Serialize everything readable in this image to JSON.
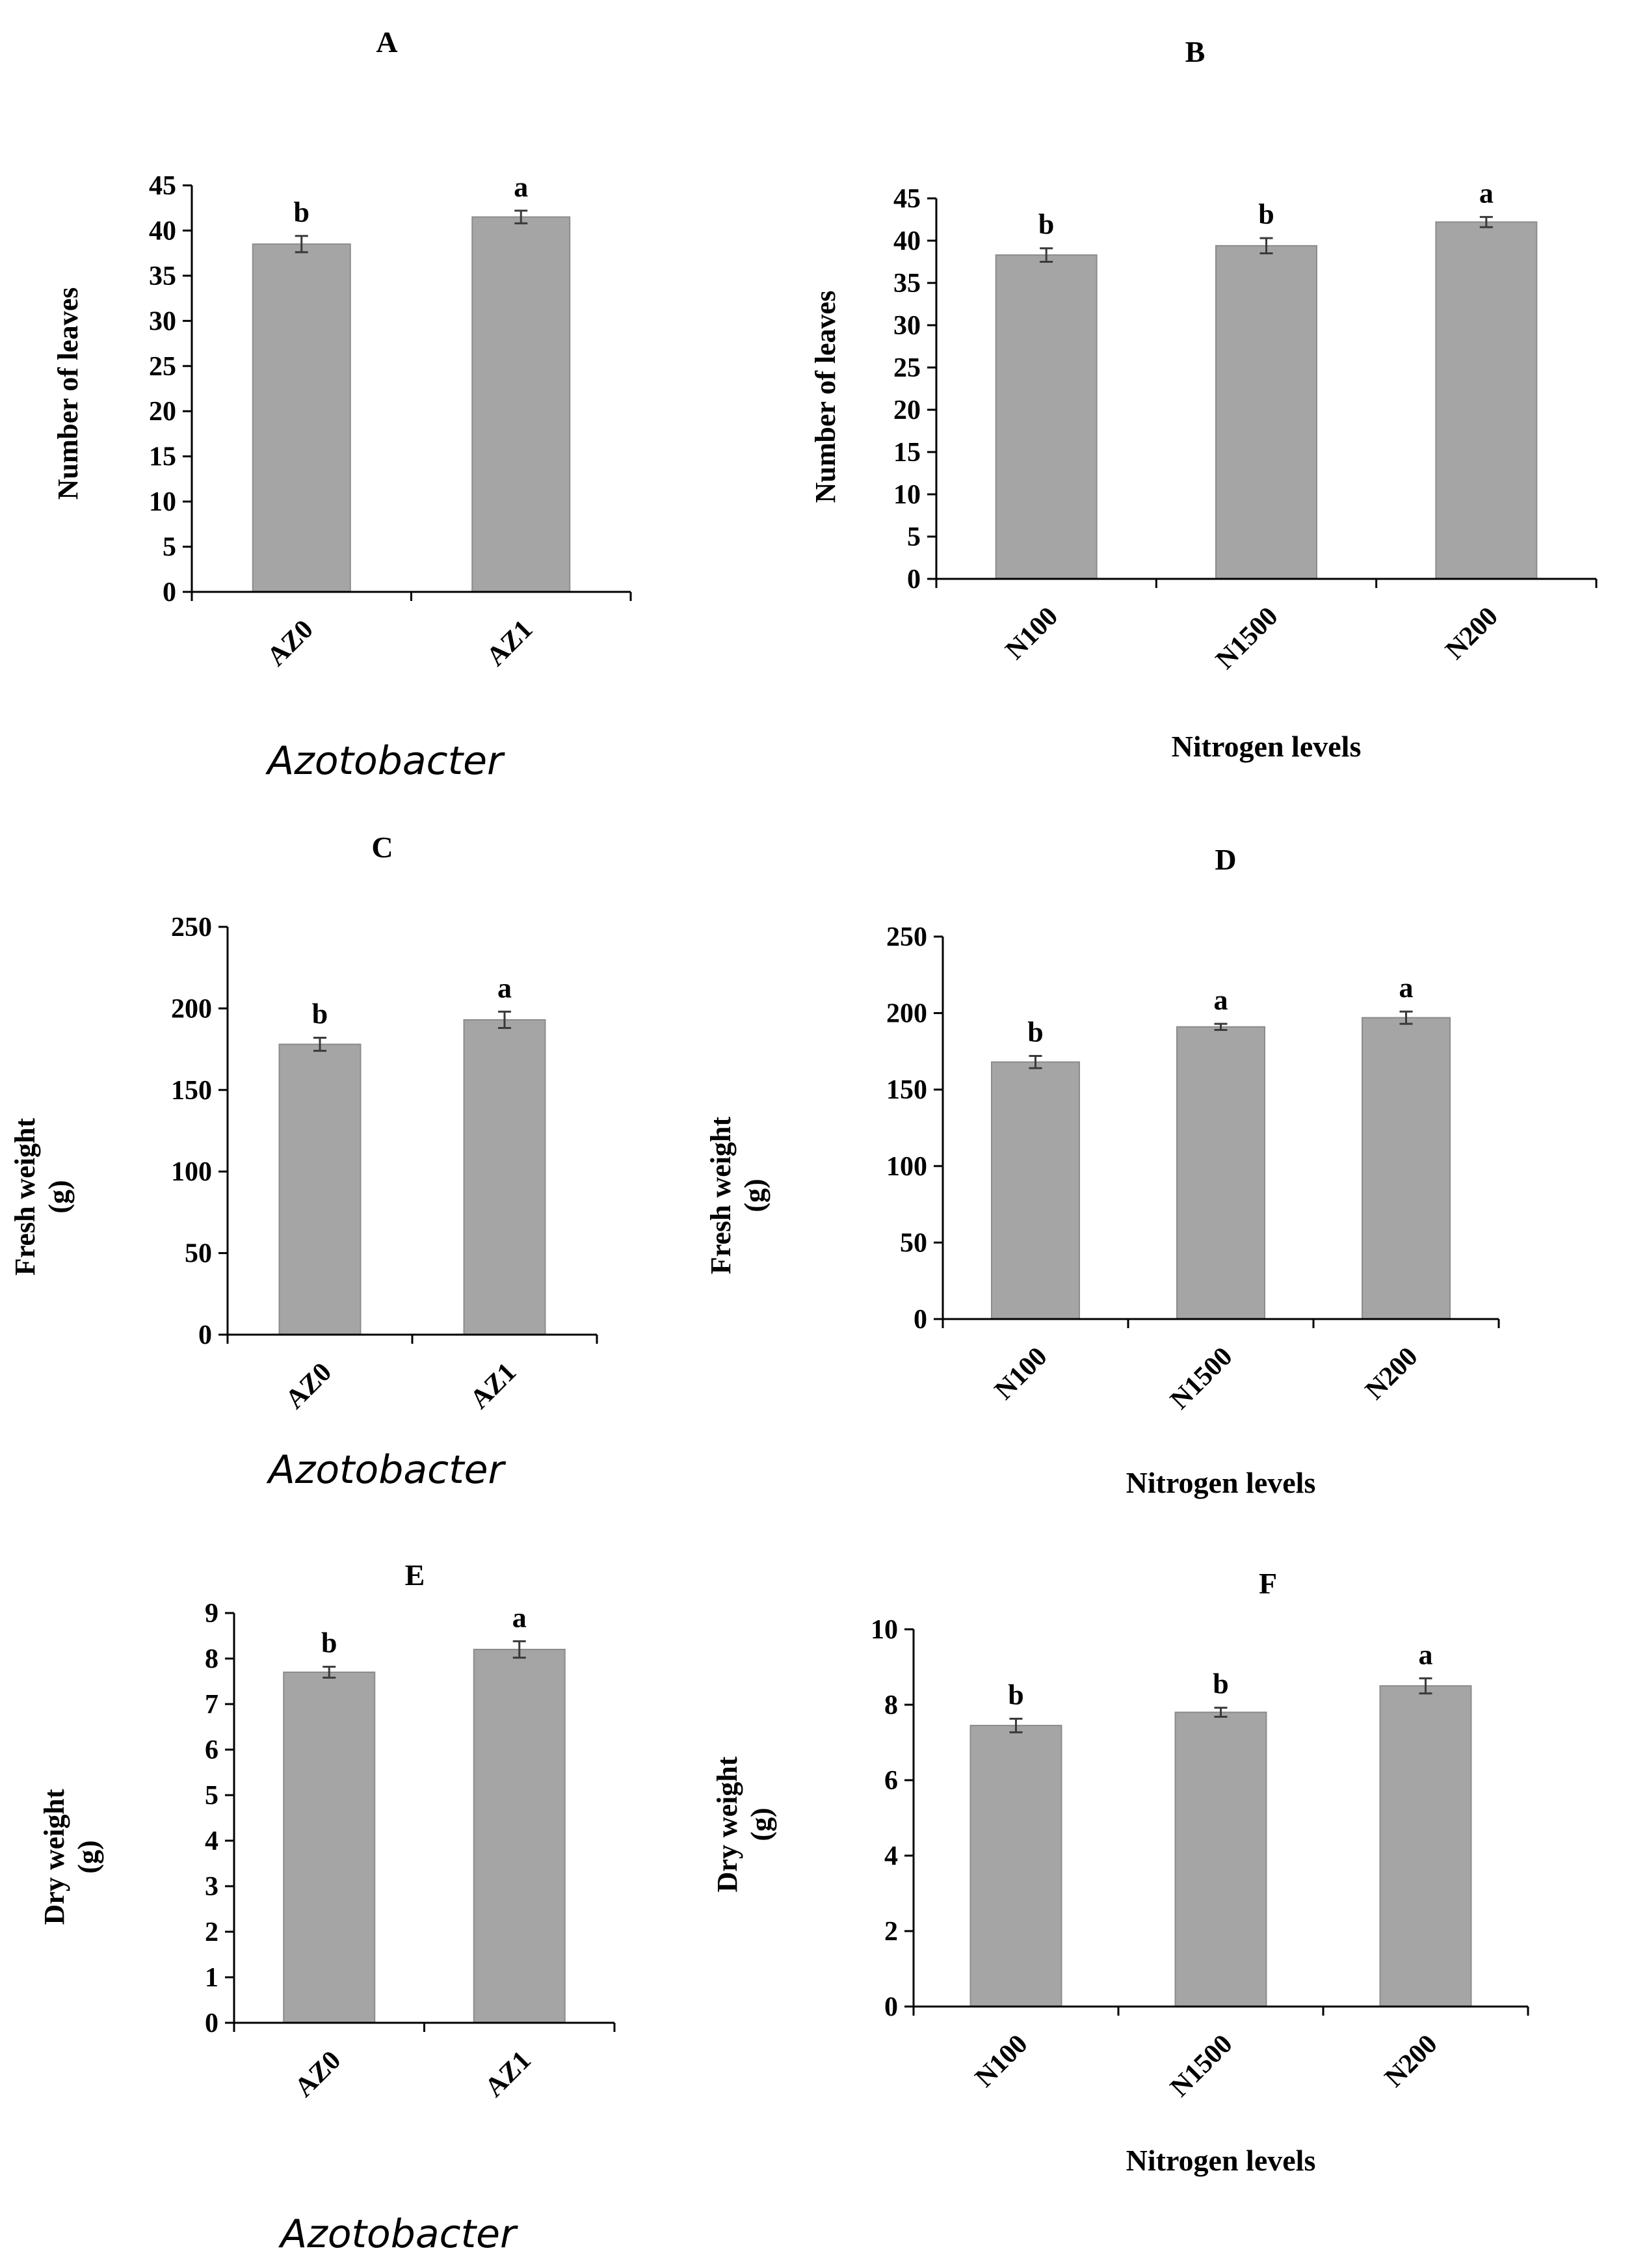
{
  "colors": {
    "bar_fill": "#a5a5a5",
    "bar_edge": "#8c8c8c",
    "axis": "#000000",
    "error_bar": "#3a3a3a"
  },
  "chart_data": [
    {
      "id": "A",
      "type": "bar",
      "title": "A",
      "ylabel": [
        "Number of leaves"
      ],
      "xlabel": "Azotobacter",
      "xlabel_italic": true,
      "categories": [
        "AZ0",
        "AZ1"
      ],
      "values": [
        38.5,
        41.5
      ],
      "errors": [
        0.9,
        0.7
      ],
      "letters": [
        "b",
        "a"
      ],
      "ylim": [
        0,
        45
      ],
      "yticks": [
        0,
        5,
        10,
        15,
        20,
        25,
        30,
        35,
        40,
        45
      ]
    },
    {
      "id": "B",
      "type": "bar",
      "title": "B",
      "ylabel": [
        "Number of leaves"
      ],
      "xlabel": "Nitrogen levels",
      "xlabel_italic": false,
      "categories": [
        "N100",
        "N1500",
        "N200"
      ],
      "values": [
        38.3,
        39.4,
        42.2
      ],
      "errors": [
        0.8,
        0.9,
        0.6
      ],
      "letters": [
        "b",
        "b",
        "a"
      ],
      "ylim": [
        0,
        45
      ],
      "yticks": [
        0,
        5,
        10,
        15,
        20,
        25,
        30,
        35,
        40,
        45
      ]
    },
    {
      "id": "C",
      "type": "bar",
      "title": "C",
      "ylabel": [
        "Fresh weight",
        "(g)"
      ],
      "xlabel": "Azotobacter",
      "xlabel_italic": true,
      "categories": [
        "AZ0",
        "AZ1"
      ],
      "values": [
        178,
        193
      ],
      "errors": [
        4,
        5
      ],
      "letters": [
        "b",
        "a"
      ],
      "ylim": [
        0,
        250
      ],
      "yticks": [
        0,
        50,
        100,
        150,
        200,
        250
      ]
    },
    {
      "id": "D",
      "type": "bar",
      "title": "D",
      "ylabel": [
        "Fresh weight",
        "(g)"
      ],
      "xlabel": "Nitrogen levels",
      "xlabel_italic": false,
      "categories": [
        "N100",
        "N1500",
        "N200"
      ],
      "values": [
        168,
        191,
        197
      ],
      "errors": [
        4,
        2,
        4
      ],
      "letters": [
        "b",
        "a",
        "a"
      ],
      "ylim": [
        0,
        250
      ],
      "yticks": [
        0,
        50,
        100,
        150,
        200,
        250
      ]
    },
    {
      "id": "E",
      "type": "bar",
      "title": "E",
      "ylabel": [
        "Dry weight",
        "(g)"
      ],
      "xlabel": "Azotobacter",
      "xlabel_italic": true,
      "categories": [
        "AZ0",
        "AZ1"
      ],
      "values": [
        7.7,
        8.2
      ],
      "errors": [
        0.12,
        0.18
      ],
      "letters": [
        "b",
        "a"
      ],
      "ylim": [
        0,
        9
      ],
      "yticks": [
        0,
        1,
        2,
        3,
        4,
        5,
        6,
        7,
        8,
        9
      ]
    },
    {
      "id": "F",
      "type": "bar",
      "title": "F",
      "ylabel": [
        "Dry weight",
        "(g)"
      ],
      "xlabel": "Nitrogen levels",
      "xlabel_italic": false,
      "categories": [
        "N100",
        "N1500",
        "N200"
      ],
      "values": [
        7.45,
        7.8,
        8.5
      ],
      "errors": [
        0.18,
        0.12,
        0.2
      ],
      "letters": [
        "b",
        "b",
        "a"
      ],
      "ylim": [
        0,
        10
      ],
      "yticks": [
        0,
        2,
        4,
        6,
        8,
        10
      ]
    }
  ]
}
